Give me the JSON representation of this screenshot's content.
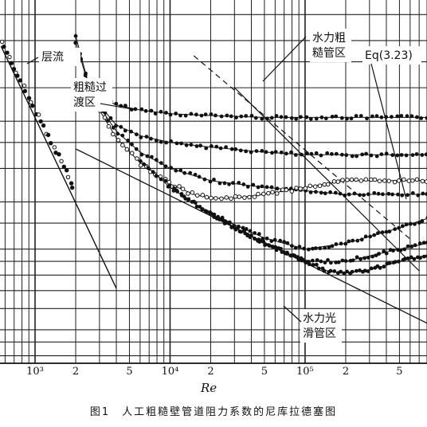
{
  "chart_data": {
    "type": "line",
    "title": "",
    "xlabel": "Re",
    "ylabel": "",
    "xscale": "log",
    "yscale": "log",
    "xlim": [
      550,
      800000
    ],
    "x_ticks": [
      {
        "value": 1000,
        "label": "10³"
      },
      {
        "value": 2000,
        "label": "2"
      },
      {
        "value": 5000,
        "label": "5"
      },
      {
        "value": 10000,
        "label": "10⁴"
      },
      {
        "value": 20000,
        "label": "2"
      },
      {
        "value": 50000,
        "label": "5"
      },
      {
        "value": 100000,
        "label": "10⁵"
      },
      {
        "value": 200000,
        "label": "2"
      },
      {
        "value": 500000,
        "label": "5"
      }
    ],
    "grid": true,
    "annotations": [
      {
        "id": "laminar",
        "lines": [
          "层流"
        ]
      },
      {
        "id": "transition",
        "lines": [
          "粗糙过",
          "渡区"
        ]
      },
      {
        "id": "rough",
        "lines": [
          "水力粗",
          "糙管区"
        ]
      },
      {
        "id": "eq",
        "lines": [
          "Eq(3.23)"
        ]
      },
      {
        "id": "smooth",
        "lines": [
          "水力光",
          "滑管区"
        ]
      }
    ],
    "series": [
      {
        "style": "filled",
        "x": [
          2000,
          2500,
          3000,
          4000,
          6000,
          10000,
          20000,
          50000,
          100000,
          200000,
          500000,
          800000
        ],
        "y": [
          0.125,
          0.082,
          0.074,
          0.069,
          0.066,
          0.064,
          0.063,
          0.062,
          0.062,
          0.062,
          0.062,
          0.062
        ]
      },
      {
        "style": "filled",
        "x": [
          2000,
          2500,
          3000,
          4000,
          6000,
          10000,
          20000,
          50000,
          100000,
          200000,
          500000,
          800000
        ],
        "y": [
          0.119,
          0.081,
          0.069,
          0.058,
          0.053,
          0.05,
          0.048,
          0.046,
          0.045,
          0.045,
          0.045,
          0.045
        ]
      },
      {
        "style": "filled",
        "x": [
          2500,
          3000,
          4000,
          6000,
          10000,
          20000,
          50000,
          100000,
          200000,
          500000,
          800000
        ],
        "y": [
          0.081,
          0.068,
          0.055,
          0.046,
          0.04,
          0.036,
          0.034,
          0.033,
          0.032,
          0.032,
          0.032
        ]
      },
      {
        "style": "hollow",
        "x": [
          3000,
          4000,
          6000,
          10000,
          15000,
          20000,
          30000,
          50000,
          100000,
          200000,
          500000,
          800000
        ],
        "y": [
          0.066,
          0.052,
          0.042,
          0.035,
          0.032,
          0.031,
          0.031,
          0.032,
          0.034,
          0.036,
          0.036,
          0.036
        ]
      },
      {
        "style": "filled",
        "x": [
          6000,
          10000,
          20000,
          50000,
          100000,
          200000,
          500000,
          800000
        ],
        "y": [
          0.043,
          0.034,
          0.027,
          0.022,
          0.02,
          0.021,
          0.024,
          0.026
        ]
      },
      {
        "style": "filled",
        "x": [
          10000,
          20000,
          50000,
          100000,
          150000,
          200000,
          500000,
          800000
        ],
        "y": [
          0.034,
          0.027,
          0.021,
          0.018,
          0.018,
          0.018,
          0.02,
          0.021
        ]
      },
      {
        "style": "filled",
        "x": [
          20000,
          50000,
          100000,
          150000,
          200000,
          300000,
          500000,
          800000
        ],
        "y": [
          0.027,
          0.021,
          0.018,
          0.0165,
          0.0163,
          0.0167,
          0.018,
          0.019
        ]
      }
    ]
  }
}
